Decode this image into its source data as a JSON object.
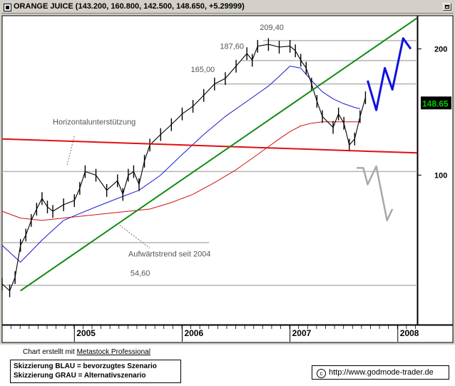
{
  "window": {
    "title": "ORANGE JUICE (143.200, 160.800, 142.500, 148.650, +5.29999)"
  },
  "footer": {
    "credit_prefix": "Chart erstellt mit",
    "credit_link": "Metastock Professional",
    "legend_blue": "Skizzierung BLAU = bevorzugtes Szenario",
    "legend_gray": "Skizzierung GRAU = Alternativszenario",
    "source": "http://www.godmode-trader.de"
  },
  "colors": {
    "background": "#ffffff",
    "frame": "#d4d0c8",
    "price": "#000000",
    "ma_short": "#1a1ad0",
    "ma_long": "#d01010",
    "trend_support": "#128a12",
    "horizontal_support": "#e01010",
    "scenario_preferred": "#1010e0",
    "scenario_alternative": "#a8a8a8",
    "price_tag": "#00cc00"
  },
  "chart_data": {
    "type": "line",
    "title": "ORANGE JUICE",
    "y_scale": "log",
    "ylim": [
      44,
      240
    ],
    "x_range": [
      2004.33,
      2008.18
    ],
    "y_ticks": [
      100,
      200
    ],
    "y_tick_labels": [
      "100",
      "200"
    ],
    "x_ticks": [
      2005,
      2006,
      2007,
      2008
    ],
    "x_tick_labels": [
      "2005",
      "2006",
      "2007",
      "2008"
    ],
    "current_price": 148.65,
    "current_price_label": "148.65",
    "price_series": {
      "x": [
        2004.33,
        2004.4,
        2004.45,
        2004.5,
        2004.55,
        2004.6,
        2004.65,
        2004.7,
        2004.75,
        2004.8,
        2004.9,
        2005.0,
        2005.05,
        2005.1,
        2005.2,
        2005.3,
        2005.4,
        2005.45,
        2005.5,
        2005.55,
        2005.6,
        2005.65,
        2005.7,
        2005.8,
        2005.9,
        2006.0,
        2006.1,
        2006.2,
        2006.3,
        2006.4,
        2006.5,
        2006.6,
        2006.65,
        2006.7,
        2006.8,
        2006.9,
        2007.0,
        2007.05,
        2007.1,
        2007.15,
        2007.2,
        2007.25,
        2007.3,
        2007.4,
        2007.45,
        2007.5,
        2007.55,
        2007.6,
        2007.65,
        2007.7
      ],
      "y": [
        55,
        53,
        57,
        68,
        72,
        78,
        83,
        88,
        84,
        82,
        85,
        87,
        93,
        102,
        100,
        92,
        97,
        90,
        100,
        102,
        95,
        108,
        118,
        125,
        132,
        140,
        146,
        155,
        165,
        170,
        182,
        195,
        188,
        203,
        205,
        202,
        203,
        198,
        188,
        180,
        165,
        150,
        138,
        130,
        140,
        133,
        118,
        122,
        138,
        153
      ]
    },
    "series": [
      {
        "name": "",
        "x": [
          2004.33,
          2004.5,
          2004.7,
          2004.9,
          2005.0,
          2005.2,
          2005.4,
          2005.6,
          2005.8,
          2006.0,
          2006.2,
          2006.4,
          2006.6,
          2006.8,
          2006.9,
          2007.0,
          2007.1,
          2007.2,
          2007.3,
          2007.4,
          2007.5,
          2007.6,
          2007.65
        ],
        "y": [
          68,
          62,
          70,
          78,
          80,
          84,
          88,
          92,
          100,
          112,
          125,
          138,
          150,
          163,
          172,
          182,
          180,
          168,
          158,
          152,
          148,
          145,
          144
        ]
      },
      {
        "name": "",
        "x": [
          2004.33,
          2004.5,
          2004.7,
          2004.9,
          2005.1,
          2005.3,
          2005.5,
          2005.7,
          2005.9,
          2006.1,
          2006.3,
          2006.5,
          2006.7,
          2006.9,
          2007.0,
          2007.1,
          2007.2,
          2007.3,
          2007.4,
          2007.5,
          2007.6,
          2007.65
        ],
        "y": [
          82,
          79,
          78,
          79,
          80,
          81,
          82,
          83,
          86,
          90,
          96,
          103,
          112,
          122,
          127,
          131,
          133,
          134,
          134,
          134,
          134,
          134
        ]
      }
    ],
    "trendlines": [
      {
        "name": "Aufwärtstrend seit 2004",
        "x": [
          2004.5,
          2008.18
        ],
        "y": [
          53,
          237
        ]
      },
      {
        "name": "Horizontalunterstützung",
        "x": [
          2004.33,
          2008.18
        ],
        "y": [
          122,
          113
        ]
      }
    ],
    "horizontal_lines": [
      {
        "y": 209.4,
        "x_range": [
          2006.75,
          2008.18
        ]
      },
      {
        "y": 187.6,
        "x_range": [
          2006.55,
          2008.18
        ]
      },
      {
        "y": 165.0,
        "x_range": [
          2006.3,
          2008.18
        ]
      },
      {
        "y": 102,
        "x_range": [
          2004.33,
          2008.18
        ]
      },
      {
        "y": 69,
        "x_range": [
          2004.33,
          2006.25
        ]
      },
      {
        "y": 54.6,
        "x_range": [
          2004.33,
          2008.18
        ]
      }
    ],
    "scenarios": [
      {
        "name": "Skizzierung BLAU",
        "x": [
          2007.72,
          2007.8,
          2007.88,
          2007.95,
          2008.05,
          2008.12
        ],
        "y": [
          168,
          143,
          180,
          160,
          212,
          200
        ]
      },
      {
        "name": "Skizzierung GRAU",
        "x": [
          2007.62,
          2007.68,
          2007.72,
          2007.8,
          2007.9,
          2007.95
        ],
        "y": [
          104,
          104,
          95,
          105,
          78,
          83
        ]
      }
    ],
    "annotations": [
      {
        "text": "209,40",
        "x": 2006.72,
        "y": 222
      },
      {
        "text": "187,60",
        "x": 2006.35,
        "y": 200
      },
      {
        "text": "165,00",
        "x": 2006.08,
        "y": 176
      },
      {
        "text": "54,60",
        "x": 2005.52,
        "y": 57.5
      },
      {
        "text": "Horizontalunterstützung",
        "x": 2004.8,
        "y": 132
      },
      {
        "text": "Aufwärtstrend seit 2004",
        "x": 2005.5,
        "y": 64
      }
    ],
    "annotation_leaders": [
      {
        "from": [
          2005.0,
          124
        ],
        "to": [
          2004.93,
          105
        ]
      },
      {
        "from": [
          2005.42,
          76
        ],
        "to": [
          2005.7,
          67
        ]
      }
    ]
  }
}
